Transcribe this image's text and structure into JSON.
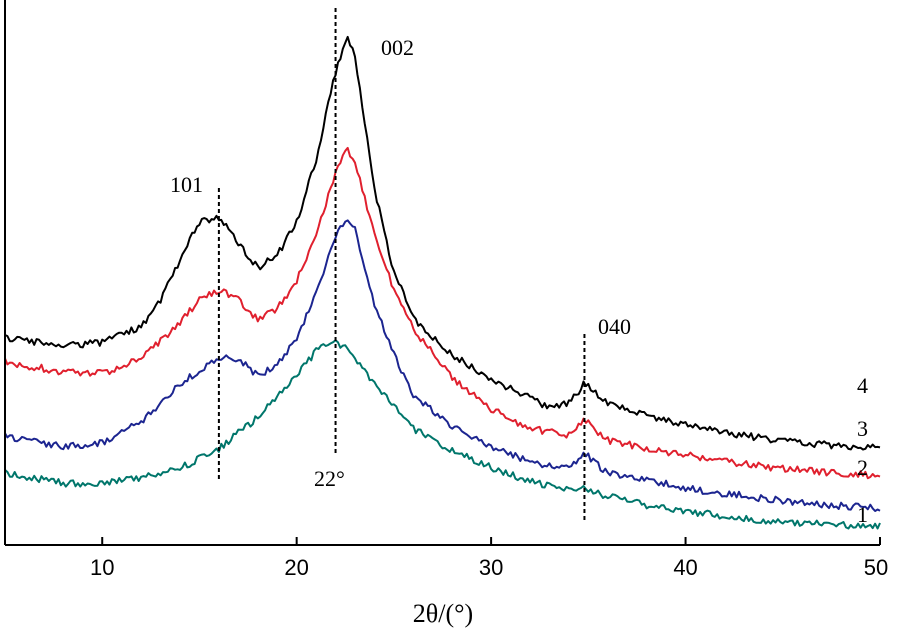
{
  "chart_data": {
    "type": "line",
    "xlabel": "2θ/(°)",
    "xlim": [
      5,
      50
    ],
    "xticks": [
      10,
      20,
      30,
      40,
      50
    ],
    "grid": false,
    "legend": "none; series labeled at right end",
    "y_axis_ticks_shown": false,
    "series": [
      {
        "name": "1",
        "color": "#00766b",
        "x": [
          5,
          8,
          10,
          12,
          14,
          16,
          18,
          20,
          21,
          22,
          23,
          24,
          26,
          28,
          30,
          32,
          34,
          34.8,
          36,
          38,
          40,
          42,
          44,
          46,
          48,
          50
        ],
        "y": [
          0.68,
          0.56,
          0.56,
          0.62,
          0.74,
          0.98,
          1.35,
          1.85,
          2.15,
          2.28,
          2.08,
          1.75,
          1.22,
          0.95,
          0.75,
          0.58,
          0.48,
          0.52,
          0.4,
          0.3,
          0.22,
          0.17,
          0.12,
          0.09,
          0.06,
          0.05
        ]
      },
      {
        "name": "2",
        "color": "#1c2590",
        "x": [
          5,
          8,
          10,
          12,
          14,
          16,
          17,
          18,
          19,
          20,
          21,
          22,
          22.6,
          23,
          24,
          25,
          26,
          28,
          30,
          32,
          34,
          34.8,
          36,
          38,
          40,
          42,
          44,
          46,
          48,
          50
        ],
        "y": [
          1.12,
          1.0,
          1.05,
          1.3,
          1.75,
          2.08,
          2.05,
          1.85,
          1.98,
          2.3,
          2.85,
          3.55,
          3.75,
          3.6,
          2.72,
          2.12,
          1.62,
          1.25,
          1.0,
          0.82,
          0.73,
          0.92,
          0.68,
          0.6,
          0.5,
          0.44,
          0.38,
          0.33,
          0.29,
          0.26
        ]
      },
      {
        "name": "3",
        "color": "#e0202e",
        "x": [
          5,
          8,
          10,
          12,
          14,
          15,
          16,
          17,
          18,
          19,
          20,
          21,
          22,
          22.6,
          23,
          24,
          25,
          26,
          28,
          30,
          32,
          34,
          34.8,
          36,
          38,
          40,
          42,
          44,
          46,
          48,
          50
        ],
        "y": [
          2.02,
          1.9,
          1.88,
          2.06,
          2.48,
          2.78,
          2.88,
          2.78,
          2.52,
          2.66,
          3.0,
          3.55,
          4.3,
          4.58,
          4.4,
          3.58,
          2.88,
          2.42,
          1.82,
          1.45,
          1.22,
          1.14,
          1.32,
          1.08,
          0.98,
          0.9,
          0.82,
          0.76,
          0.72,
          0.68,
          0.65
        ]
      },
      {
        "name": "4",
        "color": "#000000",
        "x": [
          5,
          8,
          10,
          12,
          13,
          14,
          15,
          16,
          17,
          18,
          19,
          20,
          21,
          22,
          22.6,
          23,
          24,
          25,
          26,
          28,
          30,
          32,
          33,
          34,
          34.8,
          36,
          38,
          40,
          42,
          44,
          46,
          48,
          50
        ],
        "y": [
          2.3,
          2.22,
          2.25,
          2.45,
          2.75,
          3.25,
          3.7,
          3.75,
          3.45,
          3.15,
          3.3,
          3.7,
          4.45,
          5.5,
          5.96,
          5.7,
          4.1,
          3.1,
          2.55,
          2.1,
          1.82,
          1.58,
          1.48,
          1.52,
          1.76,
          1.52,
          1.38,
          1.26,
          1.17,
          1.1,
          1.05,
          1.01,
          0.98
        ]
      }
    ],
    "annotations": [
      {
        "text": "101",
        "x": 16
      },
      {
        "text": "002",
        "x": 22
      },
      {
        "text": "040",
        "x": 34.8
      },
      {
        "text": "22°",
        "x": 22
      }
    ],
    "reference_lines_x": [
      16,
      22,
      34.8
    ]
  }
}
